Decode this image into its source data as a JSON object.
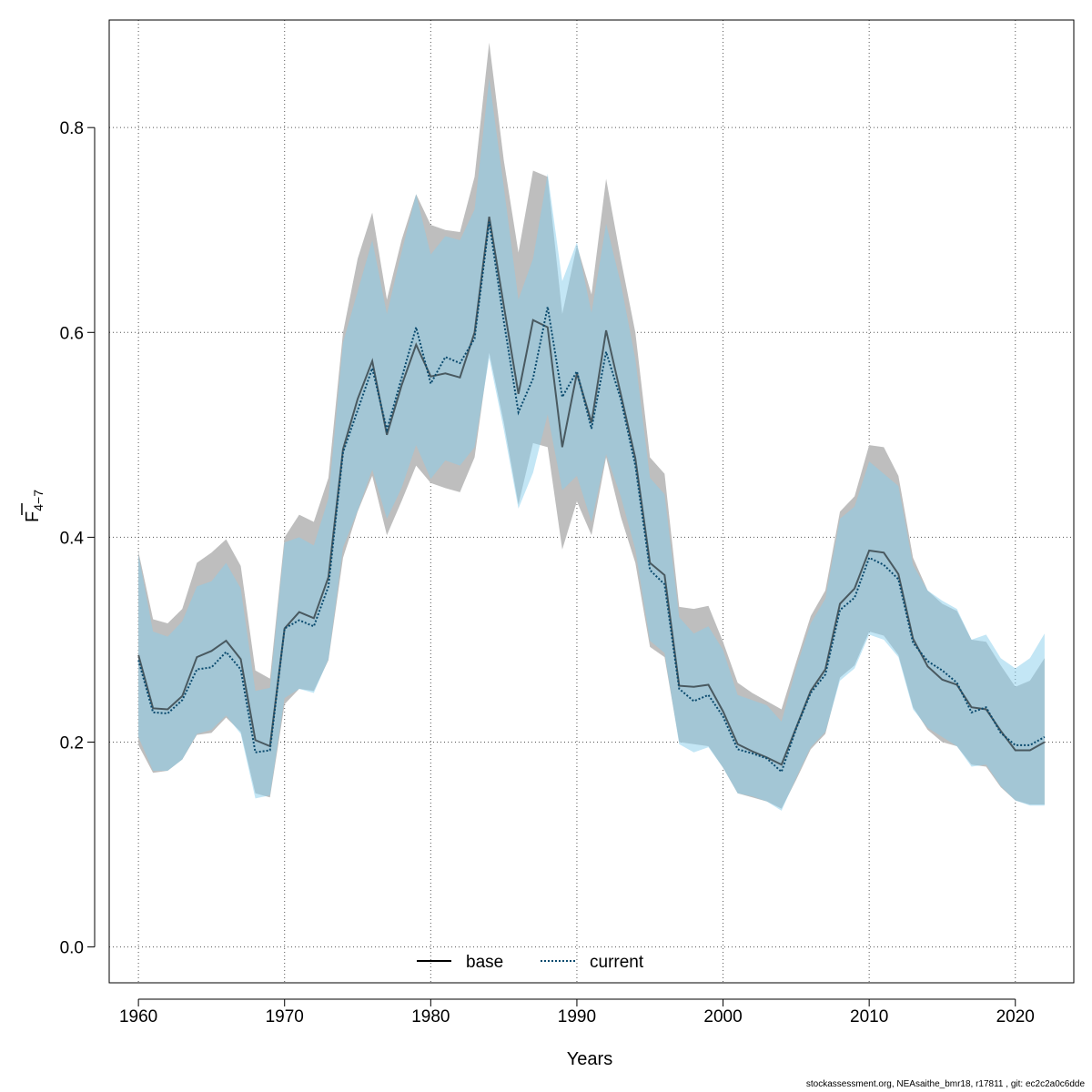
{
  "chart_data": {
    "type": "area",
    "xlabel": "Years",
    "ylabel_main": "F",
    "ylabel_sub": "4−7",
    "xlim": [
      1958,
      2024
    ],
    "ylim": [
      -0.035,
      0.905
    ],
    "x_ticks": [
      1960,
      1970,
      1980,
      1990,
      2000,
      2010,
      2020
    ],
    "y_ticks": [
      0.0,
      0.2,
      0.4,
      0.6,
      0.8
    ],
    "y_tick_labels": [
      "0.0",
      "0.2",
      "0.4",
      "0.6",
      "0.8"
    ],
    "grid": true,
    "legend_position": "bottom-center",
    "colors": {
      "base_band": "#bebebe",
      "current_band": "#87ceeb",
      "base_line": "#000000",
      "current_line": "#0a4a6e"
    },
    "x": [
      1960,
      1961,
      1962,
      1963,
      1964,
      1965,
      1966,
      1967,
      1968,
      1969,
      1970,
      1971,
      1972,
      1973,
      1974,
      1975,
      1976,
      1977,
      1978,
      1979,
      1980,
      1981,
      1982,
      1983,
      1984,
      1985,
      1986,
      1987,
      1988,
      1989,
      1990,
      1991,
      1992,
      1993,
      1994,
      1995,
      1996,
      1997,
      1998,
      1999,
      2000,
      2001,
      2002,
      2003,
      2004,
      2005,
      2006,
      2007,
      2008,
      2009,
      2010,
      2011,
      2012,
      2013,
      2014,
      2015,
      2016,
      2017,
      2018,
      2019,
      2020,
      2021,
      2022
    ],
    "series": [
      {
        "name": "base",
        "style": "solid",
        "values": [
          0.285,
          0.233,
          0.232,
          0.245,
          0.283,
          0.289,
          0.299,
          0.281,
          0.202,
          0.196,
          0.311,
          0.327,
          0.321,
          0.361,
          0.486,
          0.535,
          0.572,
          0.5,
          0.548,
          0.588,
          0.557,
          0.56,
          0.556,
          0.6,
          0.713,
          0.626,
          0.54,
          0.612,
          0.605,
          0.488,
          0.56,
          0.512,
          0.602,
          0.54,
          0.477,
          0.375,
          0.363,
          0.255,
          0.254,
          0.256,
          0.23,
          0.198,
          0.191,
          0.185,
          0.178,
          0.214,
          0.25,
          0.271,
          0.335,
          0.35,
          0.387,
          0.385,
          0.364,
          0.301,
          0.274,
          0.261,
          0.256,
          0.234,
          0.232,
          0.211,
          0.192,
          0.192,
          0.2
        ],
        "lower": [
          0.197,
          0.17,
          0.172,
          0.183,
          0.207,
          0.209,
          0.224,
          0.21,
          0.15,
          0.146,
          0.237,
          0.252,
          0.25,
          0.28,
          0.38,
          0.425,
          0.46,
          0.402,
          0.435,
          0.47,
          0.453,
          0.448,
          0.444,
          0.478,
          0.58,
          0.512,
          0.432,
          0.492,
          0.488,
          0.388,
          0.435,
          0.402,
          0.478,
          0.42,
          0.375,
          0.293,
          0.283,
          0.2,
          0.198,
          0.196,
          0.175,
          0.15,
          0.146,
          0.142,
          0.135,
          0.163,
          0.193,
          0.208,
          0.263,
          0.275,
          0.308,
          0.304,
          0.285,
          0.234,
          0.212,
          0.2,
          0.196,
          0.178,
          0.176,
          0.156,
          0.143,
          0.139,
          0.139
        ],
        "upper": [
          0.386,
          0.32,
          0.316,
          0.33,
          0.375,
          0.385,
          0.398,
          0.372,
          0.27,
          0.262,
          0.4,
          0.422,
          0.415,
          0.458,
          0.6,
          0.672,
          0.717,
          0.632,
          0.69,
          0.735,
          0.705,
          0.7,
          0.698,
          0.752,
          0.883,
          0.768,
          0.678,
          0.758,
          0.752,
          0.618,
          0.685,
          0.637,
          0.75,
          0.672,
          0.6,
          0.478,
          0.462,
          0.332,
          0.33,
          0.333,
          0.298,
          0.258,
          0.248,
          0.24,
          0.232,
          0.278,
          0.323,
          0.348,
          0.425,
          0.44,
          0.49,
          0.488,
          0.46,
          0.38,
          0.348,
          0.335,
          0.328,
          0.3,
          0.298,
          0.275,
          0.254,
          0.26,
          0.282
        ]
      },
      {
        "name": "current",
        "style": "dotted",
        "values": [
          0.28,
          0.229,
          0.228,
          0.241,
          0.271,
          0.273,
          0.288,
          0.271,
          0.19,
          0.192,
          0.311,
          0.319,
          0.313,
          0.352,
          0.483,
          0.524,
          0.565,
          0.505,
          0.555,
          0.605,
          0.55,
          0.576,
          0.57,
          0.594,
          0.708,
          0.611,
          0.522,
          0.555,
          0.625,
          0.537,
          0.562,
          0.506,
          0.581,
          0.535,
          0.47,
          0.368,
          0.354,
          0.252,
          0.24,
          0.246,
          0.225,
          0.193,
          0.189,
          0.184,
          0.171,
          0.213,
          0.248,
          0.266,
          0.329,
          0.341,
          0.38,
          0.373,
          0.359,
          0.297,
          0.279,
          0.27,
          0.258,
          0.229,
          0.234,
          0.209,
          0.197,
          0.197,
          0.205
        ],
        "lower": [
          0.205,
          0.172,
          0.172,
          0.183,
          0.208,
          0.212,
          0.226,
          0.208,
          0.145,
          0.148,
          0.243,
          0.252,
          0.248,
          0.281,
          0.39,
          0.426,
          0.466,
          0.418,
          0.448,
          0.49,
          0.457,
          0.475,
          0.47,
          0.488,
          0.575,
          0.505,
          0.428,
          0.463,
          0.52,
          0.446,
          0.46,
          0.415,
          0.481,
          0.44,
          0.388,
          0.299,
          0.287,
          0.198,
          0.19,
          0.195,
          0.175,
          0.15,
          0.147,
          0.142,
          0.133,
          0.165,
          0.195,
          0.21,
          0.26,
          0.272,
          0.305,
          0.3,
          0.283,
          0.232,
          0.214,
          0.205,
          0.196,
          0.176,
          0.178,
          0.157,
          0.143,
          0.138,
          0.138
        ],
        "upper": [
          0.383,
          0.308,
          0.303,
          0.318,
          0.352,
          0.357,
          0.375,
          0.35,
          0.25,
          0.253,
          0.395,
          0.4,
          0.392,
          0.438,
          0.59,
          0.64,
          0.69,
          0.618,
          0.678,
          0.735,
          0.676,
          0.694,
          0.69,
          0.72,
          0.848,
          0.742,
          0.632,
          0.672,
          0.755,
          0.65,
          0.688,
          0.619,
          0.706,
          0.648,
          0.574,
          0.458,
          0.442,
          0.322,
          0.306,
          0.313,
          0.29,
          0.246,
          0.241,
          0.236,
          0.22,
          0.272,
          0.316,
          0.34,
          0.418,
          0.43,
          0.474,
          0.462,
          0.45,
          0.373,
          0.348,
          0.338,
          0.33,
          0.3,
          0.305,
          0.282,
          0.272,
          0.282,
          0.306
        ]
      }
    ]
  },
  "legend": {
    "items": [
      {
        "label": "base",
        "style": "solid",
        "color": "#000000"
      },
      {
        "label": "current",
        "style": "dotted",
        "color": "#0a4a6e"
      }
    ]
  },
  "footer": {
    "text": "stockassessment.org, NEAsaithe_bmr18, r17811 , git: ec2c2a0c6dde"
  }
}
